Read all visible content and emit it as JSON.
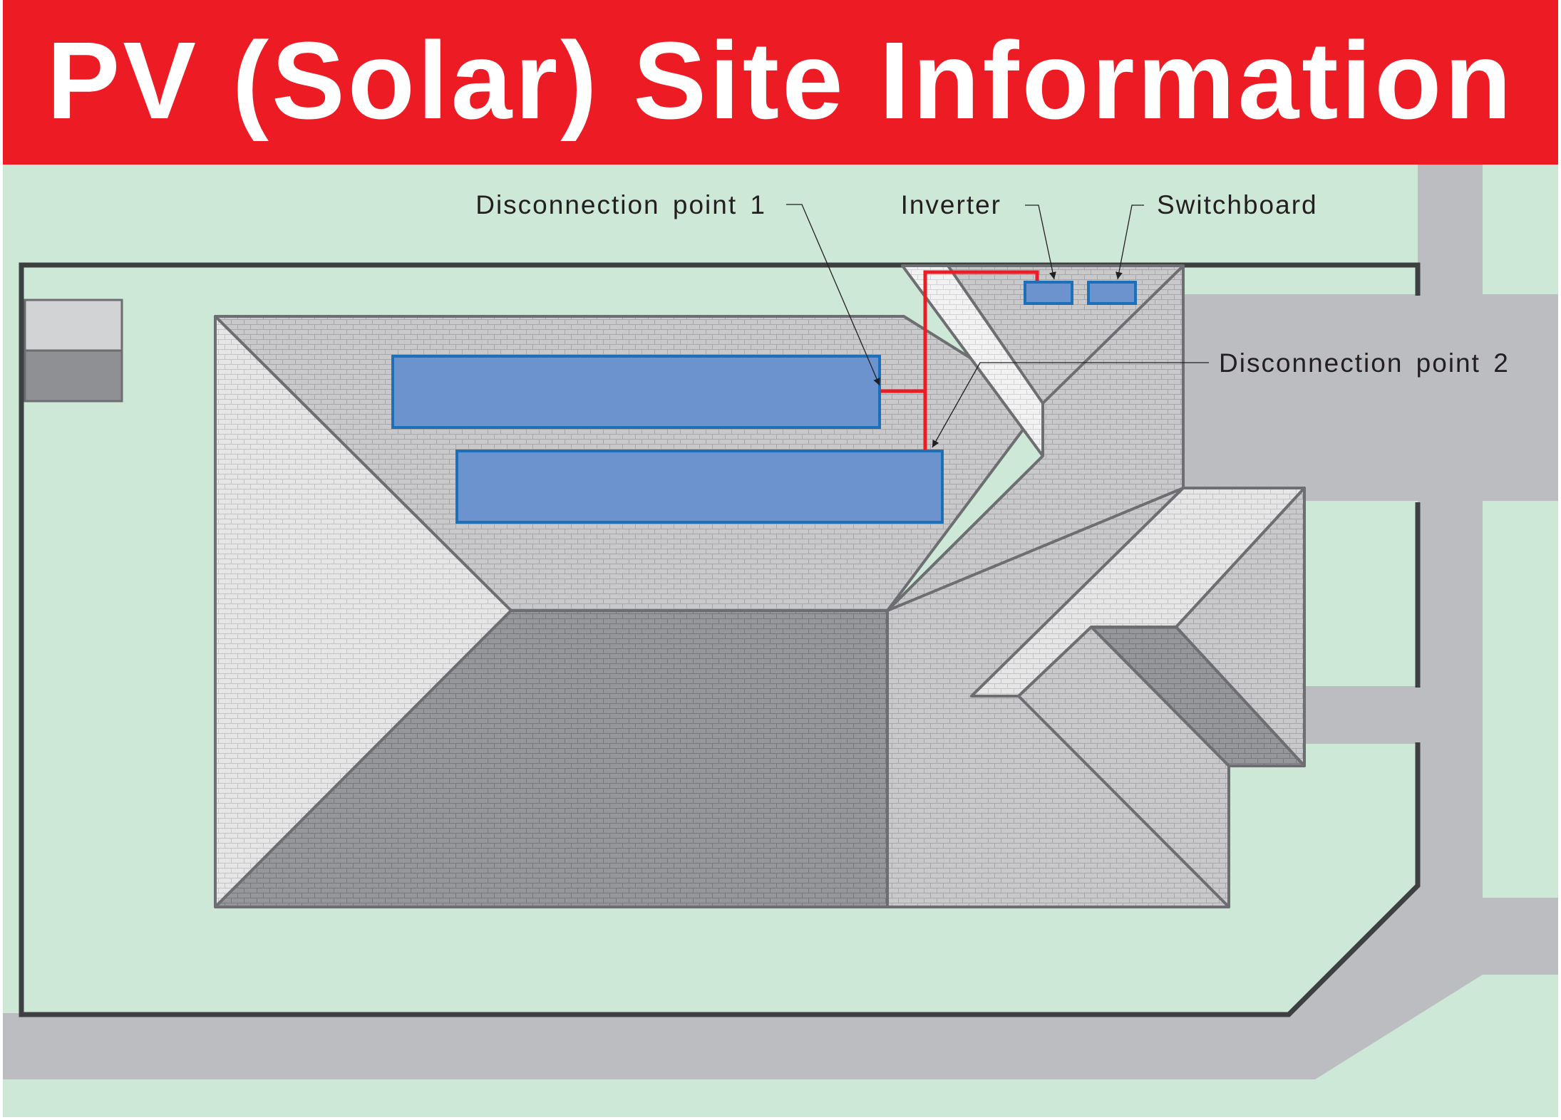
{
  "header": {
    "title": "PV (Solar) Site Information",
    "background_color": "#ed1c24"
  },
  "colors": {
    "grass": "#cde8d6",
    "road": "#bcbdc1",
    "boundary": "#3e3f41",
    "roof_light": "#e4e4e4",
    "roof_mid": "#c5c5c7",
    "roof_dark": "#8f9094",
    "solar_panel": "#6c93cd",
    "panel_outline": "#1d6fb8",
    "dc_cable": "#ed1c24"
  },
  "labels": {
    "disconnection_point_1": "Disconnection point 1",
    "inverter": "Inverter",
    "switchboard": "Switchboard",
    "disconnection_point_2": "Disconnection point 2"
  },
  "icons": {
    "solar_array": "solar-panel-icon",
    "inverter": "inverter-box-icon",
    "switchboard": "switchboard-box-icon",
    "meter_box": "meter-box-icon"
  }
}
